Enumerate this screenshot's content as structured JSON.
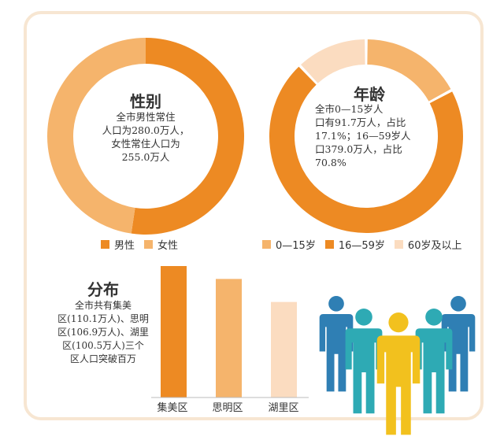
{
  "colors": {
    "dark": "#ed8a23",
    "mid": "#f5b46c",
    "light": "#fbdcc0",
    "frame": "#f7e6d2",
    "people_blue": "#2f7fb4",
    "people_teal": "#2eaab4",
    "people_yellow": "#f2c11e"
  },
  "chart_data": [
    {
      "type": "pie",
      "title": "性别",
      "description": "全市男性常住人口为280.0万人，女性常住人口为255.0万人",
      "slices": [
        {
          "name": "男性",
          "value": 280.0,
          "color": "#ed8a23"
        },
        {
          "name": "女性",
          "value": 255.0,
          "color": "#f5b46c"
        }
      ],
      "legend": "bottom",
      "unit": "万人"
    },
    {
      "type": "pie",
      "title": "年龄",
      "description": "全市0—15岁人口有91.7万人，占比17.1%；16—59岁人口379.0万人，占比70.8%",
      "slices": [
        {
          "name": "0—15岁",
          "value": 91.7,
          "percent": 17.1,
          "color": "#f5b46c"
        },
        {
          "name": "16—59岁",
          "value": 379.0,
          "percent": 70.8,
          "color": "#ed8a23"
        },
        {
          "name": "60岁及以上",
          "value": 64.3,
          "percent": 12.1,
          "color": "#fbdcc0"
        }
      ],
      "legend": "bottom",
      "unit": "万人"
    },
    {
      "type": "bar",
      "title": "分布",
      "description": "全市共有集美区(110.1万人)、思明区(106.9万人)、湖里区(100.5万人)三个区人口突破百万",
      "categories": [
        "集美区",
        "思明区",
        "湖里区"
      ],
      "values": [
        110.1,
        106.9,
        100.5
      ],
      "colors": [
        "#ed8a23",
        "#f5b46c",
        "#fbdcc0"
      ],
      "unit": "万人",
      "xlabel": "",
      "ylabel": ""
    }
  ],
  "texts": {
    "gender_title": "性别",
    "gender_text": "全市男性常住\n人口为280.0万人，\n女性常住人口为\n255.0万人",
    "age_title": "年龄",
    "age_text": "全市0—15岁人\n口有91.7万人，占比\n17.1%；16—59岁人\n口379.0万人，占比\n70.8%",
    "dist_title": "分布",
    "dist_text": "全市共有集美\n区(110.1万人)、思明\n区(106.9万人)、湖里\n区(100.5万人)三个\n区人口突破百万"
  },
  "legends": {
    "gender": [
      "男性",
      "女性"
    ],
    "age": [
      "0—15岁",
      "16—59岁",
      "60岁及以上"
    ]
  },
  "icons": [
    "people-group-icon"
  ]
}
